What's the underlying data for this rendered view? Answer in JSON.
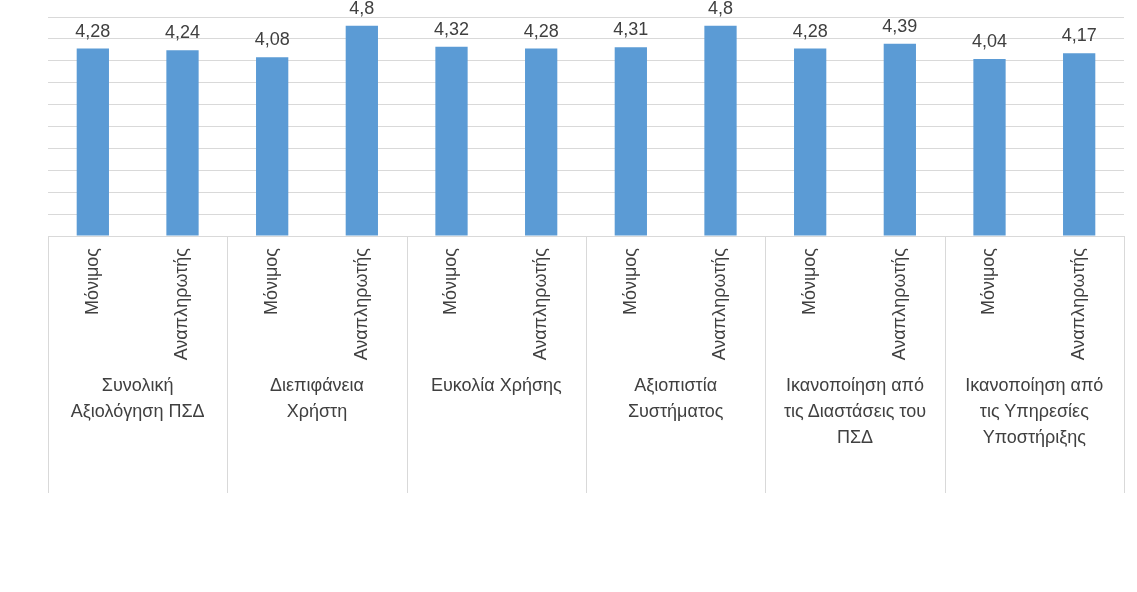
{
  "chart_data": {
    "type": "bar",
    "categories": [
      "Μόνιμος",
      "Αναπληρωτής",
      "Μόνιμος",
      "Αναπληρωτής",
      "Μόνιμος",
      "Αναπληρωτής",
      "Μόνιμος",
      "Αναπληρωτής",
      "Μόνιμος",
      "Αναπληρωτής",
      "Μόνιμος",
      "Αναπληρωτής"
    ],
    "values": [
      4.28,
      4.24,
      4.08,
      4.8,
      4.32,
      4.28,
      4.31,
      4.8,
      4.28,
      4.39,
      4.04,
      4.17
    ],
    "color": "#5b9bd5",
    "value_labels": [
      "4,28",
      "4,24",
      "4,08",
      "4,8",
      "4,32",
      "4,28",
      "4,31",
      "4,8",
      "4,28",
      "4,39",
      "4,04",
      "4,17"
    ],
    "grid": "y",
    "legend": false,
    "tick_labels": "x",
    "annotations": [
      "Συνολική Αξιολόγηση ΠΣΔ",
      "Διεπιφάνεια Χρήστη",
      "Ευκολία Χρήσης",
      "Αξιοπιστία Συστήματος",
      "Ικανοποίηση από τις Διαστάσεις του ΠΣΔ",
      "Ικανοποίηση από τις Υπηρεσίες Υποστήριξης"
    ]
  }
}
